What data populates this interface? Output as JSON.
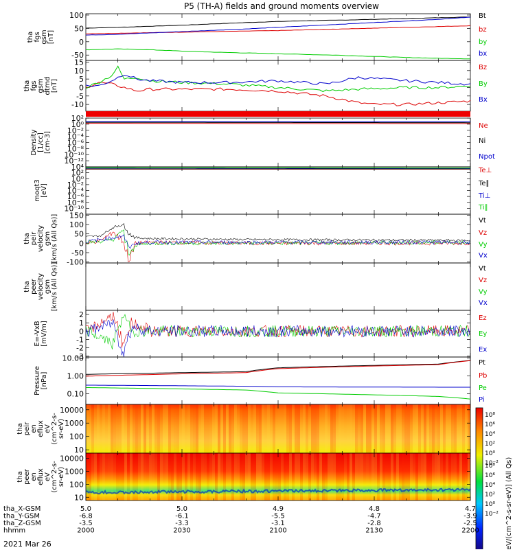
{
  "title": "P5 (TH-A) fields and ground moments overview",
  "date_label": "2021 Mar 26",
  "chart_data": [
    {
      "type": "line",
      "ylabel": [
        "tha",
        "fgs",
        "gsm",
        "[nT]"
      ],
      "ylim": [
        -70,
        105
      ],
      "yticks": [
        "100",
        "50",
        "0",
        "-50"
      ],
      "ytick_values": [
        100,
        50,
        0,
        -50
      ],
      "series": [
        {
          "name": "Bt",
          "color": "#000000",
          "x": [
            2000,
            2010,
            2020,
            2030,
            2040,
            2050,
            2100,
            2110,
            2120,
            2130,
            2140,
            2150,
            2200
          ],
          "y": [
            51,
            54,
            58,
            62,
            67,
            72,
            76,
            79,
            81,
            84,
            87,
            90,
            93
          ]
        },
        {
          "name": "bz",
          "color": "#dd0000",
          "x": [
            2000,
            2010,
            2020,
            2030,
            2040,
            2050,
            2100,
            2110,
            2120,
            2130,
            2140,
            2150,
            2200
          ],
          "y": [
            30,
            32,
            34,
            36,
            38,
            40,
            42,
            45,
            48,
            51,
            54,
            57,
            60
          ]
        },
        {
          "name": "by",
          "color": "#00cc00",
          "x": [
            2000,
            2010,
            2020,
            2030,
            2040,
            2050,
            2100,
            2110,
            2120,
            2130,
            2140,
            2150,
            2200
          ],
          "y": [
            -30,
            -27,
            -30,
            -35,
            -39,
            -42,
            -45,
            -48,
            -51,
            -55,
            -59,
            -62,
            -64
          ]
        },
        {
          "name": "bx",
          "color": "#0000cc",
          "x": [
            2000,
            2010,
            2020,
            2030,
            2040,
            2050,
            2100,
            2110,
            2120,
            2130,
            2140,
            2150,
            2200
          ],
          "y": [
            25,
            28,
            33,
            38,
            43,
            48,
            54,
            60,
            66,
            72,
            78,
            84,
            92
          ]
        }
      ]
    },
    {
      "type": "line",
      "ylabel": [
        "tha",
        "fgs",
        "gsm",
        "dtrnd",
        "[nT]"
      ],
      "ylim": [
        -14,
        16
      ],
      "yticks": [
        "15",
        "10",
        "5",
        "0",
        "-5",
        "-10"
      ],
      "ytick_values": [
        15,
        10,
        5,
        0,
        -5,
        -10
      ],
      "series": [
        {
          "name": "Bz",
          "color": "#dd0000",
          "x": [
            2000,
            2004,
            2008,
            2012,
            2016,
            2020,
            2030,
            2045,
            2100,
            2115,
            2125,
            2130,
            2140,
            2150,
            2200
          ],
          "y": [
            0,
            3,
            2,
            0,
            -2,
            -1,
            -1,
            -1,
            -2,
            -5,
            -9,
            -10,
            -10,
            -9,
            -8
          ]
        },
        {
          "name": "By",
          "color": "#00cc00",
          "x": [
            2000,
            2004,
            2008,
            2010,
            2012,
            2016,
            2020,
            2030,
            2045,
            2100,
            2115,
            2125,
            2140,
            2150,
            2200
          ],
          "y": [
            0,
            3,
            7,
            12,
            5,
            6,
            4,
            3,
            2,
            0,
            -2,
            -1,
            0,
            0,
            1
          ]
        },
        {
          "name": "Bx",
          "color": "#0000cc",
          "x": [
            2000,
            2004,
            2008,
            2012,
            2016,
            2020,
            2030,
            2045,
            2100,
            2115,
            2125,
            2140,
            2150,
            2200
          ],
          "y": [
            1,
            1,
            4,
            8,
            5,
            4,
            3,
            3,
            4,
            2,
            6,
            4,
            3,
            2
          ]
        }
      ]
    },
    {
      "type": "line",
      "ylabel": [
        "Density",
        "[1/cc]",
        "[cm-3]"
      ],
      "log": true,
      "ylim_exponents": [
        -14,
        2
      ],
      "yticks": [
        "10²",
        "10⁰",
        "10⁻²",
        "10⁻⁴",
        "10⁻⁶",
        "10⁻⁸",
        "10⁻¹⁰",
        "10⁻¹²"
      ],
      "ytick_exponents": [
        2,
        0,
        -2,
        -4,
        -6,
        -8,
        -10,
        -12
      ],
      "series": [
        {
          "name": "Ne",
          "color": "#dd0000",
          "x": [
            2000,
            2100,
            2200
          ],
          "y_exponent": [
            0.3,
            0.2,
            0.2
          ]
        },
        {
          "name": "Ni",
          "color": "#000000",
          "x": [
            2000,
            2100,
            2200
          ],
          "y_exponent": [
            0.6,
            0.55,
            0.5
          ]
        },
        {
          "name": "Npot",
          "color": "#0000cc",
          "x": [
            2000,
            2100,
            2200
          ],
          "y_exponent": [
            0.9,
            0.85,
            0.8
          ]
        }
      ]
    },
    {
      "type": "line",
      "ylabel": [
        "moqt3",
        "[eV]"
      ],
      "log": true,
      "ylim_exponents": [
        -12,
        4
      ],
      "yticks": [
        "10⁴",
        "10²",
        "10⁰",
        "10⁻²",
        "10⁻⁴",
        "10⁻⁶",
        "10⁻⁸",
        "10⁻¹⁰"
      ],
      "ytick_exponents": [
        4,
        2,
        0,
        -2,
        -4,
        -6,
        -8,
        -10
      ],
      "series": [
        {
          "name": "Te⊥",
          "color": "#dd0000",
          "x": [
            2000,
            2200
          ],
          "y_exponent": [
            3.2,
            3.2
          ]
        },
        {
          "name": "Te∥",
          "color": "#000000",
          "x": [
            2000,
            2200
          ],
          "y_exponent": [
            3.3,
            3.3
          ]
        },
        {
          "name": "Ti⊥",
          "color": "#0000cc",
          "x": [
            2000,
            2200
          ],
          "y_exponent": [
            3.6,
            3.5
          ]
        },
        {
          "name": "Ti∥",
          "color": "#00cc00",
          "x": [
            2000,
            2200
          ],
          "y_exponent": [
            3.7,
            3.6
          ]
        }
      ]
    },
    {
      "type": "line",
      "ylabel": [
        "tha",
        "peir",
        "velocity",
        "gsm",
        "[km/s (All Qs)]"
      ],
      "ylim": [
        -105,
        155
      ],
      "yticks": [
        "150",
        "100",
        "50",
        "0",
        "-50",
        "-100"
      ],
      "ytick_values": [
        150,
        100,
        50,
        0,
        -50,
        -100
      ],
      "series": [
        {
          "name": "Vt",
          "color": "#000000",
          "x": [
            2000,
            2004,
            2008,
            2011,
            2013,
            2015,
            2020,
            2050,
            2200
          ],
          "y": [
            35,
            40,
            85,
            100,
            50,
            30,
            25,
            20,
            15
          ]
        },
        {
          "name": "Vz",
          "color": "#dd0000",
          "x": [
            2000,
            2004,
            2008,
            2011,
            2013,
            2015,
            2020,
            2050,
            2200
          ],
          "y": [
            0,
            15,
            60,
            10,
            -90,
            0,
            5,
            0,
            0
          ]
        },
        {
          "name": "Vy",
          "color": "#00cc00",
          "x": [
            2000,
            2004,
            2008,
            2011,
            2013,
            2015,
            2020,
            2050,
            2200
          ],
          "y": [
            5,
            10,
            20,
            70,
            -60,
            -10,
            0,
            0,
            5
          ]
        },
        {
          "name": "Vx",
          "color": "#0000cc",
          "x": [
            2000,
            2004,
            2008,
            2011,
            2013,
            2015,
            2020,
            2050,
            2200
          ],
          "y": [
            10,
            20,
            30,
            40,
            -20,
            0,
            5,
            5,
            5
          ]
        }
      ]
    },
    {
      "type": "line",
      "ylabel": [
        "tha",
        "peer",
        "velocity",
        "gsm",
        "[km/s (All Qs)]"
      ],
      "yticks": [],
      "series": [
        {
          "name": "Vt",
          "color": "#000000"
        },
        {
          "name": "Vz",
          "color": "#dd0000"
        },
        {
          "name": "Vy",
          "color": "#00cc00"
        },
        {
          "name": "Vx",
          "color": "#0000cc"
        }
      ]
    },
    {
      "type": "line",
      "ylabel": [
        "E=-VxB",
        "[mV/m]"
      ],
      "ylim": [
        -3.1,
        2.5
      ],
      "yticks": [
        "2",
        "1",
        "0",
        "-1",
        "-2",
        "-3"
      ],
      "ytick_values": [
        2,
        1,
        0,
        -1,
        -2,
        -3
      ],
      "series": [
        {
          "name": "Ez",
          "color": "#dd0000",
          "x": [
            2000,
            2008,
            2011,
            2014,
            2020,
            2200
          ],
          "y": [
            0,
            2,
            -2,
            1,
            0,
            0
          ]
        },
        {
          "name": "Ey",
          "color": "#00cc00",
          "x": [
            2000,
            2008,
            2011,
            2014,
            2020,
            2200
          ],
          "y": [
            0,
            -1.5,
            2,
            0,
            0,
            0
          ]
        },
        {
          "name": "Ex",
          "color": "#0000cc",
          "x": [
            2000,
            2008,
            2011,
            2014,
            2020,
            2200
          ],
          "y": [
            0,
            1,
            -2.5,
            0.5,
            0,
            0
          ]
        }
      ]
    },
    {
      "type": "line",
      "ylabel": [
        "Pressure",
        "[nPa]"
      ],
      "log": true,
      "ylim_exponents": [
        -1.6,
        1.05
      ],
      "yticks": [
        "10.00",
        "1.00",
        "0.10"
      ],
      "ytick_exponents": [
        1,
        0,
        -1
      ],
      "series": [
        {
          "name": "Pt",
          "color": "#000000",
          "x": [
            2000,
            2050,
            2100,
            2150,
            2200
          ],
          "y": [
            1.2,
            1.7,
            2.8,
            4.5,
            7.2
          ]
        },
        {
          "name": "Pb",
          "color": "#dd0000",
          "x": [
            2000,
            2050,
            2100,
            2150,
            2200
          ],
          "y": [
            0.95,
            1.5,
            2.5,
            4.2,
            7.0
          ]
        },
        {
          "name": "Pe",
          "color": "#00cc00",
          "x": [
            2000,
            2050,
            2100,
            2150,
            2200
          ],
          "y": [
            0.22,
            0.16,
            0.11,
            0.07,
            0.05
          ]
        },
        {
          "name": "Pi",
          "color": "#0000cc",
          "x": [
            2000,
            2050,
            2100,
            2150,
            2200
          ],
          "y": [
            0.3,
            0.26,
            0.24,
            0.23,
            0.23
          ]
        }
      ]
    },
    {
      "type": "heatmap",
      "ylabel": [
        "tha",
        "peir",
        "en",
        "eflux",
        "eV",
        "(cm^2-s-",
        "sr-eV)"
      ],
      "log": true,
      "yticks": [
        "10000",
        "1000",
        "100",
        "10"
      ],
      "ytick_exponents": [
        4,
        3,
        2,
        1
      ],
      "ylim_exponents": [
        0.75,
        4.4
      ]
    },
    {
      "type": "heatmap",
      "ylabel": [
        "tha",
        "peer",
        "en",
        "eflux",
        "eV",
        "(cm^2-s-",
        "sr-eV)"
      ],
      "log": true,
      "yticks": [
        "10000",
        "1000",
        "100",
        "10"
      ],
      "ytick_exponents": [
        4,
        3,
        2,
        1
      ],
      "ylim_exponents": [
        0.75,
        4.4
      ]
    }
  ],
  "colorbar": {
    "label": "[eV/(cm^2-s-sr-eV)] (All Qs)",
    "upper_ticks": [
      "10⁸",
      "10⁶",
      "10⁴",
      "10²",
      "10⁰",
      "10⁻²"
    ],
    "lower_ticks": [
      "10⁸",
      "10⁶",
      "10⁴",
      "10²",
      "10⁰",
      "10⁻²"
    ]
  },
  "time_axis": {
    "rows": [
      {
        "label": "tha_X-GSM",
        "values": [
          "5.0",
          "5.0",
          "4.9",
          "4.8",
          "4.7"
        ]
      },
      {
        "label": "tha_Y-GSM",
        "values": [
          "-6.8",
          "-6.1",
          "-5.5",
          "-4.7",
          "-3.9"
        ]
      },
      {
        "label": "tha_Z-GSM",
        "values": [
          "-3.5",
          "-3.3",
          "-3.1",
          "-2.8",
          "-2.5"
        ]
      },
      {
        "label": "hhmm",
        "values": [
          "2000",
          "2030",
          "2100",
          "2130",
          "2200"
        ]
      }
    ]
  }
}
